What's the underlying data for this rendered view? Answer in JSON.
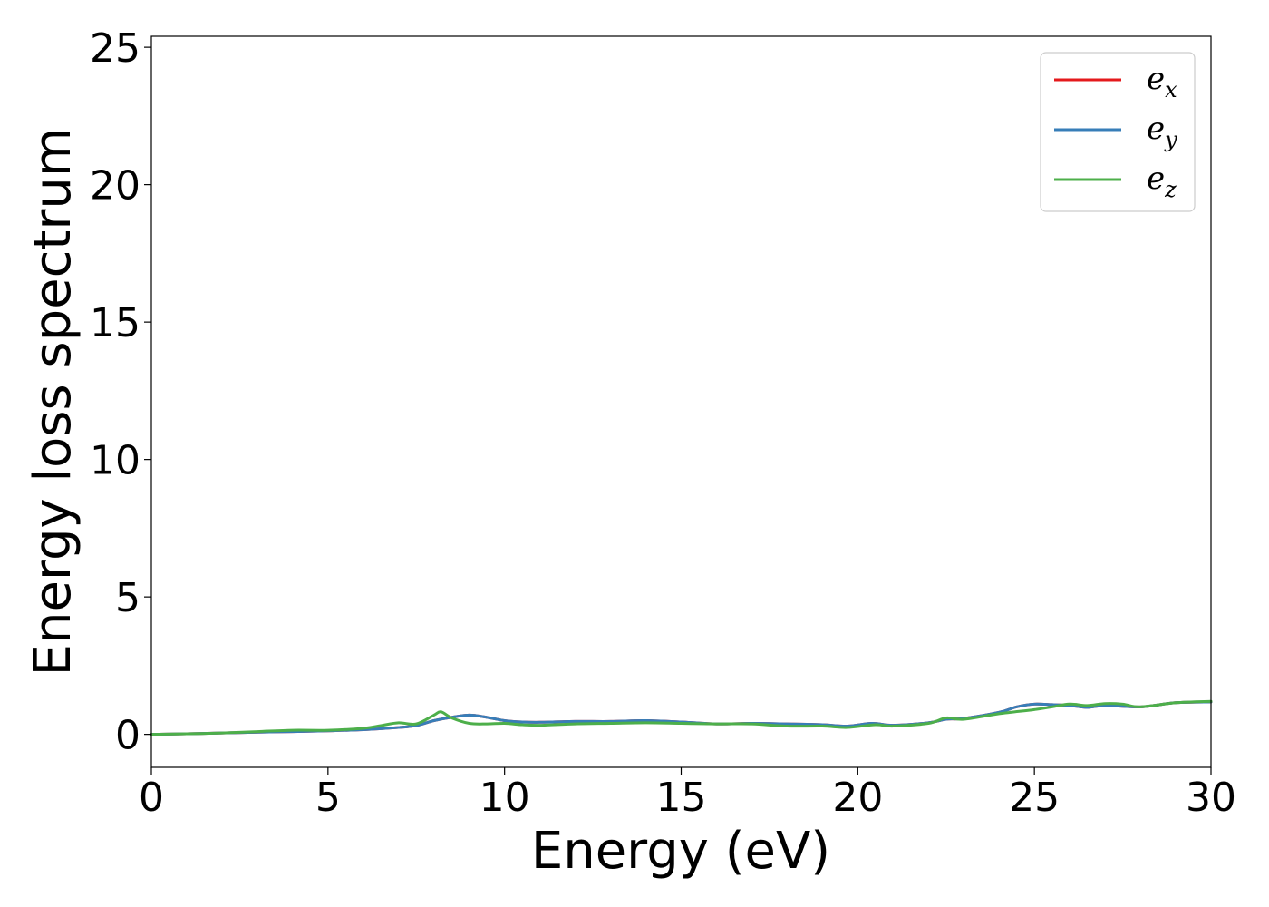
{
  "chart_data": {
    "type": "line",
    "xlabel": "Energy (eV)",
    "ylabel": "Energy loss spectrum",
    "xlim": [
      0,
      30
    ],
    "ylim": [
      -1.2,
      25.4
    ],
    "xticks": [
      0,
      5,
      10,
      15,
      20,
      25,
      30
    ],
    "yticks": [
      0,
      5,
      10,
      15,
      20,
      25
    ],
    "grid": false,
    "legend_position": "top-right",
    "series": [
      {
        "name": "e",
        "subscript": "x",
        "color": "#e41a1c",
        "x": [
          0,
          1,
          2,
          3,
          4,
          5,
          6,
          7,
          7.5,
          8,
          8.5,
          9,
          9.5,
          10,
          10.5,
          11,
          12,
          13,
          14,
          15,
          16,
          17,
          18,
          19,
          19.7,
          20.4,
          21,
          22,
          22.5,
          23,
          24,
          24.5,
          25,
          25.5,
          26,
          26.5,
          27,
          28,
          29,
          30
        ],
        "y": [
          0,
          0.02,
          0.05,
          0.08,
          0.1,
          0.13,
          0.17,
          0.25,
          0.32,
          0.5,
          0.62,
          0.7,
          0.62,
          0.5,
          0.45,
          0.44,
          0.47,
          0.47,
          0.5,
          0.45,
          0.38,
          0.4,
          0.38,
          0.35,
          0.3,
          0.4,
          0.33,
          0.42,
          0.55,
          0.58,
          0.8,
          1.0,
          1.1,
          1.08,
          1.05,
          0.98,
          1.05,
          1.0,
          1.15,
          1.18
        ]
      },
      {
        "name": "e",
        "subscript": "y",
        "color": "#377eb8",
        "x": [
          0,
          1,
          2,
          3,
          4,
          5,
          6,
          7,
          7.5,
          8,
          8.5,
          9,
          9.5,
          10,
          10.5,
          11,
          12,
          13,
          14,
          15,
          16,
          17,
          18,
          19,
          19.7,
          20.4,
          21,
          22,
          22.5,
          23,
          24,
          24.5,
          25,
          25.5,
          26,
          26.5,
          27,
          28,
          29,
          30
        ],
        "y": [
          0,
          0.02,
          0.05,
          0.08,
          0.1,
          0.13,
          0.17,
          0.25,
          0.32,
          0.5,
          0.62,
          0.7,
          0.62,
          0.5,
          0.45,
          0.44,
          0.47,
          0.47,
          0.5,
          0.45,
          0.38,
          0.4,
          0.38,
          0.35,
          0.3,
          0.4,
          0.33,
          0.42,
          0.55,
          0.58,
          0.8,
          1.0,
          1.1,
          1.08,
          1.05,
          0.98,
          1.05,
          1.0,
          1.15,
          1.18
        ]
      },
      {
        "name": "e",
        "subscript": "z",
        "color": "#4daf4a",
        "x": [
          0,
          1,
          2,
          3,
          4,
          5,
          6,
          6.5,
          7,
          7.5,
          8,
          8.2,
          8.5,
          9,
          9.5,
          10,
          10.5,
          11,
          12,
          13,
          14,
          15,
          16,
          17,
          18,
          19,
          19.7,
          20.5,
          21,
          22,
          22.5,
          23,
          24,
          25,
          25.5,
          26,
          26.5,
          27,
          27.5,
          28,
          29,
          30
        ],
        "y": [
          0,
          0.02,
          0.05,
          0.1,
          0.15,
          0.15,
          0.22,
          0.32,
          0.42,
          0.38,
          0.7,
          0.82,
          0.6,
          0.4,
          0.38,
          0.4,
          0.35,
          0.33,
          0.38,
          0.4,
          0.42,
          0.4,
          0.38,
          0.38,
          0.3,
          0.3,
          0.25,
          0.35,
          0.3,
          0.4,
          0.6,
          0.55,
          0.75,
          0.9,
          1.0,
          1.1,
          1.05,
          1.12,
          1.1,
          1.0,
          1.15,
          1.2
        ]
      }
    ]
  }
}
